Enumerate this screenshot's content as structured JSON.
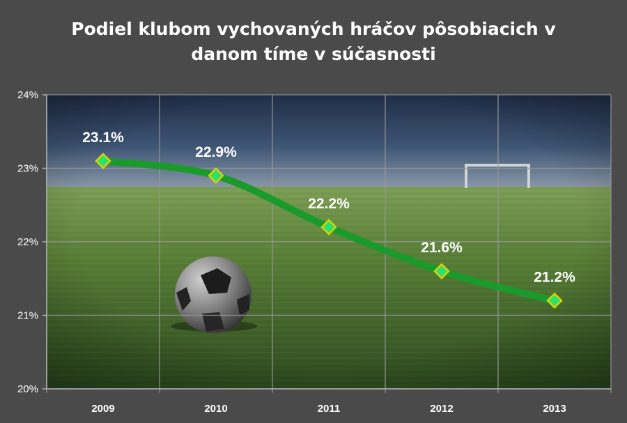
{
  "chart_data": {
    "type": "line",
    "title_line1": "Podiel klubom vychovaných hráčov pôsobiacich v",
    "title_line2": "danom tíme v súčasnosti",
    "categories": [
      "2009",
      "2010",
      "2011",
      "2012",
      "2013"
    ],
    "series": [
      {
        "values": [
          23.1,
          22.9,
          22.2,
          21.6,
          21.2
        ],
        "labels": [
          "23.1%",
          "22.9%",
          "22.2%",
          "21.6%",
          "21.2%"
        ],
        "color": "#1a9a2a",
        "marker_color": "#2ee06a",
        "marker_border": "#d8d400"
      }
    ],
    "ylim": [
      20,
      24
    ],
    "yticks": [
      20,
      21,
      22,
      23,
      24
    ],
    "ytick_labels": [
      "20%",
      "21%",
      "22%",
      "23%",
      "24%"
    ],
    "grid": true,
    "background": "football-pitch-photo"
  }
}
